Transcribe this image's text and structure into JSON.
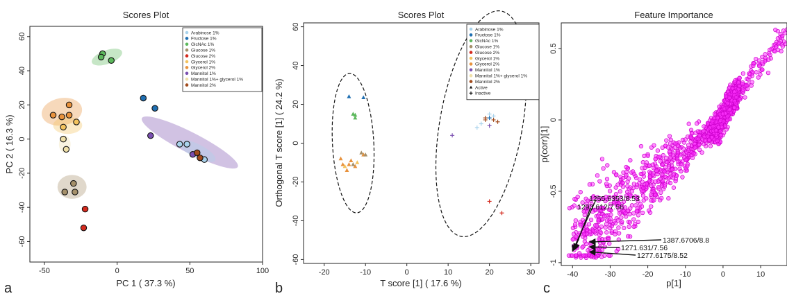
{
  "panel_letters": [
    "a",
    "b",
    "c"
  ],
  "colors": {
    "Arabinose 1%": "#a9d3ec",
    "Fructose 1%": "#1f6fb2",
    "GlcNAc 1%": "#5cb85c",
    "Glucose 1%": "#a5906a",
    "Glucose 2%": "#d42a1e",
    "Glycerol 1%": "#f3c35e",
    "Glycerol 2%": "#e8923d",
    "Mannitol 1%": "#7a4fb0",
    "Mannitol 1%+ glycerol 1%": "#efe0a8",
    "Mannitol 2%": "#a24c1e",
    "magenta": "#ff33ff"
  },
  "chart_data": [
    {
      "type": "scatter",
      "title": "Scores Plot",
      "xlabel": "PC 1 ( 37.3 %)",
      "ylabel": "PC 2 ( 16.3 %)",
      "xlim": [
        -60,
        100
      ],
      "ylim": [
        -72,
        66
      ],
      "xticks": [
        -50,
        0,
        50,
        100
      ],
      "yticks": [
        -60,
        -40,
        -20,
        0,
        20,
        40,
        60
      ],
      "legend": {
        "position": "top-right",
        "entries": [
          "Arabinose 1%",
          "Fructose 1%",
          "GlcNAc 1%",
          "Glucose 1%",
          "Glucose 2%",
          "Glycerol 1%",
          "Glycerol 2%",
          "Mannitol 1%",
          "Mannitol 1%+ glycerol 1%",
          "Mannitol 2%"
        ]
      },
      "series": [
        {
          "name": "GlcNAc 1%",
          "points": [
            [
              -10,
              50
            ],
            [
              -11,
              48
            ],
            [
              -4,
              46
            ]
          ]
        },
        {
          "name": "Fructose 1%",
          "points": [
            [
              18,
              24
            ],
            [
              26,
              18
            ]
          ]
        },
        {
          "name": "Glycerol 2%",
          "points": [
            [
              -44,
              14
            ],
            [
              -38,
              13
            ],
            [
              -33,
              20
            ],
            [
              -33,
              14
            ]
          ]
        },
        {
          "name": "Glycerol 1%",
          "points": [
            [
              -37,
              7
            ],
            [
              -28,
              10
            ]
          ]
        },
        {
          "name": "Mannitol 1%+ glycerol 1%",
          "points": [
            [
              -37,
              0
            ],
            [
              -35,
              -6
            ]
          ]
        },
        {
          "name": "Mannitol 1%",
          "points": [
            [
              23,
              2
            ],
            [
              52,
              -9
            ]
          ]
        },
        {
          "name": "Arabinose 1%",
          "points": [
            [
              43,
              -3
            ],
            [
              48,
              -3
            ],
            [
              60,
              -12
            ]
          ]
        },
        {
          "name": "Mannitol 2%",
          "points": [
            [
              55,
              -8
            ],
            [
              57,
              -11
            ]
          ]
        },
        {
          "name": "Glucose 1%",
          "points": [
            [
              -30,
              -26
            ],
            [
              -36,
              -31
            ],
            [
              -29,
              -31
            ]
          ]
        },
        {
          "name": "Glucose 2%",
          "points": [
            [
              -22,
              -41
            ],
            [
              -23,
              -52
            ]
          ]
        }
      ]
    },
    {
      "type": "scatter",
      "title": "Scores Plot",
      "xlabel": "T score [1] ( 17.6 %)",
      "ylabel": "Orthogonal T score [1] ( 24.2 %)",
      "xlim": [
        -25,
        32
      ],
      "ylim": [
        -62,
        62
      ],
      "xticks": [
        -20,
        -10,
        0,
        10,
        20,
        30
      ],
      "yticks": [
        -60,
        -40,
        -20,
        0,
        20,
        40,
        60
      ],
      "legend": {
        "position": "top-right",
        "entries": [
          "Arabinose 1%",
          "Fructose 1%",
          "GlcNAc 1%",
          "Glucose 1%",
          "Glucose 2%",
          "Glycerol 1%",
          "Glycerol 2%",
          "Mannitol 1%",
          "Mannitol 1%+ glycerol 1%",
          "Mannitol 2%",
          "Active",
          "Inactive"
        ]
      },
      "series": [
        {
          "name": "Fructose 1%",
          "marker": "triangle",
          "points": [
            [
              -14,
              24
            ],
            [
              -10.5,
              23.5
            ]
          ]
        },
        {
          "name": "GlcNAc 1%",
          "marker": "triangle",
          "points": [
            [
              -13,
              15
            ],
            [
              -12.5,
              14.5
            ],
            [
              -12.5,
              13
            ]
          ]
        },
        {
          "name": "Glycerol 2%",
          "marker": "triangle",
          "points": [
            [
              -16,
              -8
            ],
            [
              -15.5,
              -11
            ],
            [
              -14.5,
              -14
            ],
            [
              -14,
              -11
            ],
            [
              -13.5,
              -9
            ],
            [
              -10.5,
              -6
            ],
            [
              -12.5,
              -12
            ]
          ]
        },
        {
          "name": "Glucose 1%",
          "marker": "triangle",
          "points": [
            [
              -11,
              -5
            ],
            [
              -13,
              -11
            ],
            [
              -10,
              -6
            ]
          ]
        },
        {
          "name": "Glycerol 1%",
          "marker": "triangle",
          "points": [
            [
              -15,
              -12
            ],
            [
              -12,
              -10
            ]
          ]
        },
        {
          "name": "Arabinose 1%",
          "marker": "plus",
          "points": [
            [
              17,
              8
            ],
            [
              18,
              10
            ],
            [
              20,
              15
            ],
            [
              21,
              14
            ]
          ]
        },
        {
          "name": "Mannitol 1%",
          "marker": "plus",
          "points": [
            [
              11,
              4
            ],
            [
              20,
              9
            ]
          ]
        },
        {
          "name": "Mannitol 2%",
          "marker": "plus",
          "points": [
            [
              19,
              12
            ],
            [
              19,
              13
            ],
            [
              21,
              12
            ],
            [
              22,
              11
            ]
          ]
        },
        {
          "name": "Glucose 2%",
          "marker": "plus",
          "points": [
            [
              20,
              -30
            ],
            [
              23,
              -36
            ]
          ]
        },
        {
          "name": "Fructose 1%",
          "marker": "plus",
          "points": [
            [
              20,
              13
            ]
          ]
        }
      ]
    },
    {
      "type": "scatter",
      "title": "Feature Importance",
      "xlabel": "p[1]",
      "ylabel": "p(corr)[1]",
      "xlim": [
        -43,
        17
      ],
      "ylim": [
        -1.02,
        0.68
      ],
      "xticks": [
        -40,
        -30,
        -20,
        -10,
        0,
        10
      ],
      "yticks": [
        -1,
        -0.5,
        0,
        0.5
      ],
      "annotations": [
        {
          "label": "1255.6353/8.53",
          "x": -40,
          "y": -0.92
        },
        {
          "label": "1293.612/7.56",
          "x": -39.5,
          "y": -0.91
        },
        {
          "label": "1387.6706/8.8",
          "x": -35.5,
          "y": -0.855
        },
        {
          "label": "1271.631/7.56",
          "x": -35.5,
          "y": -0.89
        },
        {
          "label": "1277.6175/8.52",
          "x": -35.5,
          "y": -0.925
        }
      ]
    }
  ]
}
